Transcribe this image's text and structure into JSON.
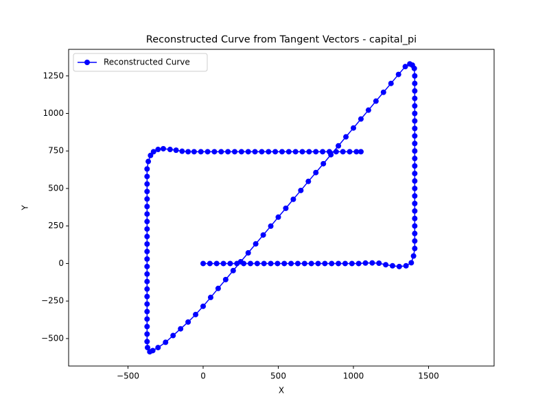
{
  "chart_data": {
    "type": "line",
    "title": "Reconstructed Curve from Tangent Vectors - capital_pi",
    "x_label": "X",
    "y_label": "Y",
    "xlim": [
      -895,
      1936
    ],
    "ylim": [
      -683,
      1427
    ],
    "xticks": [
      {
        "value": -500,
        "label": "−500"
      },
      0,
      500,
      1000,
      1500
    ],
    "yticks": [
      {
        "value": -500,
        "label": "−500"
      },
      {
        "value": -250,
        "label": "−250"
      },
      0,
      250,
      500,
      750,
      1000,
      1250
    ],
    "legend": "upper left",
    "series": [
      {
        "name": "Reconstructed Curve",
        "color": "#0000ff",
        "x": [
          0,
          45,
          90,
          135,
          180,
          225,
          270,
          315,
          360,
          405,
          450,
          495,
          540,
          585,
          630,
          675,
          720,
          765,
          810,
          855,
          900,
          945,
          990,
          1035,
          1080,
          1125,
          1170,
          1215,
          1260,
          1305,
          1350,
          1385,
          1400,
          1408,
          1408,
          1408,
          1408,
          1408,
          1408,
          1408,
          1408,
          1408,
          1408,
          1408,
          1408,
          1408,
          1408,
          1408,
          1408,
          1408,
          1408,
          1408,
          1408,
          1408,
          1408,
          1408,
          1408,
          1405,
          1392,
          1375,
          1345,
          1300,
          1250,
          1200,
          1150,
          1100,
          1050,
          1000,
          950,
          900,
          850,
          800,
          750,
          700,
          650,
          600,
          550,
          500,
          450,
          400,
          350,
          300,
          250,
          200,
          150,
          100,
          50,
          0,
          -50,
          -100,
          -150,
          -200,
          -250,
          -300,
          -335,
          -355,
          -370,
          -373,
          -373,
          -373,
          -373,
          -373,
          -373,
          -373,
          -373,
          -373,
          -373,
          -373,
          -373,
          -373,
          -373,
          -373,
          -373,
          -373,
          -373,
          -373,
          -373,
          -373,
          -373,
          -373,
          -373,
          -365,
          -350,
          -330,
          -300,
          -265,
          -220,
          -180,
          -140,
          -100,
          -60,
          -15,
          30,
          75,
          120,
          165,
          210,
          255,
          300,
          345,
          390,
          435,
          480,
          525,
          570,
          615,
          660,
          705,
          750,
          795,
          840,
          885,
          930,
          975,
          1020,
          1050
        ],
        "values": [
          0,
          0,
          0,
          0,
          0,
          0,
          0,
          0,
          0,
          0,
          0,
          0,
          0,
          0,
          0,
          0,
          0,
          0,
          0,
          0,
          0,
          0,
          0,
          0,
          3,
          4,
          2,
          -8,
          -15,
          -20,
          -15,
          5,
          50,
          100,
          150,
          200,
          250,
          300,
          350,
          400,
          450,
          500,
          550,
          600,
          650,
          700,
          750,
          800,
          850,
          900,
          950,
          1000,
          1050,
          1100,
          1150,
          1200,
          1250,
          1300,
          1322,
          1330,
          1312,
          1260,
          1200,
          1141,
          1082,
          1022,
          963,
          903,
          844,
          784,
          725,
          665,
          606,
          547,
          487,
          428,
          368,
          309,
          249,
          190,
          131,
          71,
          12,
          -47,
          -107,
          -166,
          -226,
          -285,
          -340,
          -390,
          -435,
          -480,
          -525,
          -560,
          -580,
          -588,
          -560,
          -520,
          -470,
          -420,
          -370,
          -320,
          -270,
          -220,
          -170,
          -120,
          -70,
          -20,
          30,
          80,
          130,
          180,
          230,
          280,
          330,
          380,
          430,
          480,
          530,
          580,
          630,
          680,
          720,
          745,
          760,
          765,
          760,
          755,
          748,
          745,
          745,
          745,
          745,
          745,
          745,
          745,
          745,
          745,
          745,
          745,
          745,
          745,
          745,
          745,
          745,
          745,
          745,
          745,
          745,
          745,
          745,
          745,
          745,
          745,
          745,
          745
        ]
      }
    ]
  }
}
